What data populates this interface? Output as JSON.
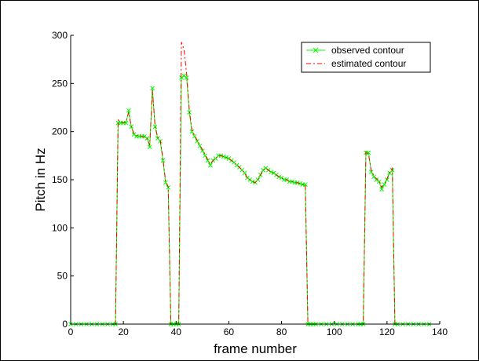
{
  "chart_data": {
    "type": "line",
    "title": "",
    "xlabel": "frame number",
    "ylabel": "Pitch in Hz",
    "xlim": [
      0,
      140
    ],
    "ylim": [
      0,
      300
    ],
    "xticks": [
      "0",
      "20",
      "40",
      "60",
      "80",
      "100",
      "120",
      "140"
    ],
    "yticks": [
      "0",
      "50",
      "100",
      "150",
      "200",
      "250",
      "300"
    ],
    "grid": false,
    "legend_position": "top-right",
    "series": [
      {
        "name": "observed contour",
        "color": "#00ff00",
        "style": "solid",
        "marker": "x",
        "x": [
          0,
          2,
          4,
          6,
          8,
          10,
          12,
          14,
          16,
          17,
          18,
          19,
          20,
          21,
          22,
          23,
          24,
          25,
          26,
          27,
          28,
          29,
          30,
          31,
          32,
          33,
          34,
          35,
          36,
          37,
          38,
          39,
          40,
          41,
          42,
          43,
          44,
          45,
          46,
          47,
          48,
          49,
          50,
          51,
          52,
          53,
          54,
          55,
          56,
          57,
          58,
          59,
          60,
          61,
          62,
          63,
          64,
          65,
          66,
          67,
          68,
          69,
          70,
          71,
          72,
          73,
          74,
          75,
          76,
          77,
          78,
          79,
          80,
          81,
          82,
          83,
          84,
          85,
          86,
          87,
          88,
          89,
          90,
          91,
          92,
          93,
          95,
          97,
          99,
          101,
          103,
          105,
          107,
          109,
          110,
          111,
          112,
          113,
          114,
          115,
          116,
          117,
          118,
          119,
          120,
          121,
          122,
          123,
          124,
          126,
          128,
          130,
          132,
          134,
          136
        ],
        "y": [
          0,
          0,
          0,
          0,
          0,
          0,
          0,
          0,
          0,
          0,
          209,
          209,
          209,
          209,
          222,
          205,
          197,
          195,
          195,
          195,
          195,
          193,
          184,
          245,
          205,
          193,
          190,
          170,
          147,
          142,
          0,
          0,
          0,
          0,
          256,
          258,
          256,
          220,
          200,
          195,
          190,
          185,
          180,
          175,
          170,
          165,
          170,
          172,
          175,
          175,
          174,
          173,
          172,
          170,
          168,
          165,
          163,
          160,
          157,
          152,
          150,
          148,
          147,
          150,
          155,
          160,
          162,
          160,
          158,
          157,
          155,
          153,
          152,
          150,
          150,
          148,
          148,
          147,
          147,
          146,
          145,
          145,
          0,
          0,
          0,
          0,
          0,
          0,
          0,
          0,
          0,
          0,
          0,
          0,
          0,
          0,
          178,
          178,
          158,
          153,
          150,
          148,
          140,
          145,
          150,
          157,
          160,
          0,
          0,
          0,
          0,
          0,
          0,
          0,
          0
        ]
      },
      {
        "name": "estimated contour",
        "color": "#ff0000",
        "style": "dashed",
        "marker": "none",
        "x": [
          0,
          17,
          18,
          19,
          20,
          21,
          22,
          23,
          24,
          25,
          26,
          27,
          28,
          29,
          30,
          31,
          32,
          33,
          34,
          35,
          36,
          37,
          38,
          39,
          40,
          41,
          42,
          43,
          44,
          45,
          46,
          47,
          48,
          49,
          50,
          51,
          52,
          53,
          54,
          55,
          56,
          57,
          58,
          59,
          60,
          61,
          62,
          63,
          64,
          65,
          66,
          67,
          68,
          69,
          70,
          71,
          72,
          73,
          74,
          75,
          76,
          77,
          78,
          79,
          80,
          81,
          82,
          83,
          84,
          85,
          86,
          87,
          88,
          89,
          90,
          91,
          92,
          93,
          110,
          111,
          112,
          113,
          114,
          115,
          116,
          117,
          118,
          119,
          120,
          121,
          122,
          123,
          136
        ],
        "y": [
          0,
          0,
          212,
          210,
          209,
          210,
          220,
          205,
          198,
          196,
          196,
          195,
          194,
          193,
          186,
          243,
          207,
          194,
          191,
          172,
          148,
          143,
          0,
          0,
          0,
          0,
          293,
          285,
          260,
          222,
          202,
          196,
          191,
          186,
          181,
          176,
          171,
          166,
          170,
          172,
          175,
          175,
          174,
          173,
          172,
          170,
          168,
          165,
          163,
          160,
          157,
          152,
          150,
          148,
          147,
          150,
          155,
          160,
          162,
          160,
          158,
          157,
          155,
          153,
          152,
          150,
          150,
          148,
          148,
          147,
          147,
          146,
          145,
          145,
          0,
          0,
          0,
          0,
          0,
          0,
          180,
          176,
          160,
          154,
          151,
          149,
          142,
          146,
          151,
          158,
          162,
          0,
          0
        ]
      }
    ]
  }
}
